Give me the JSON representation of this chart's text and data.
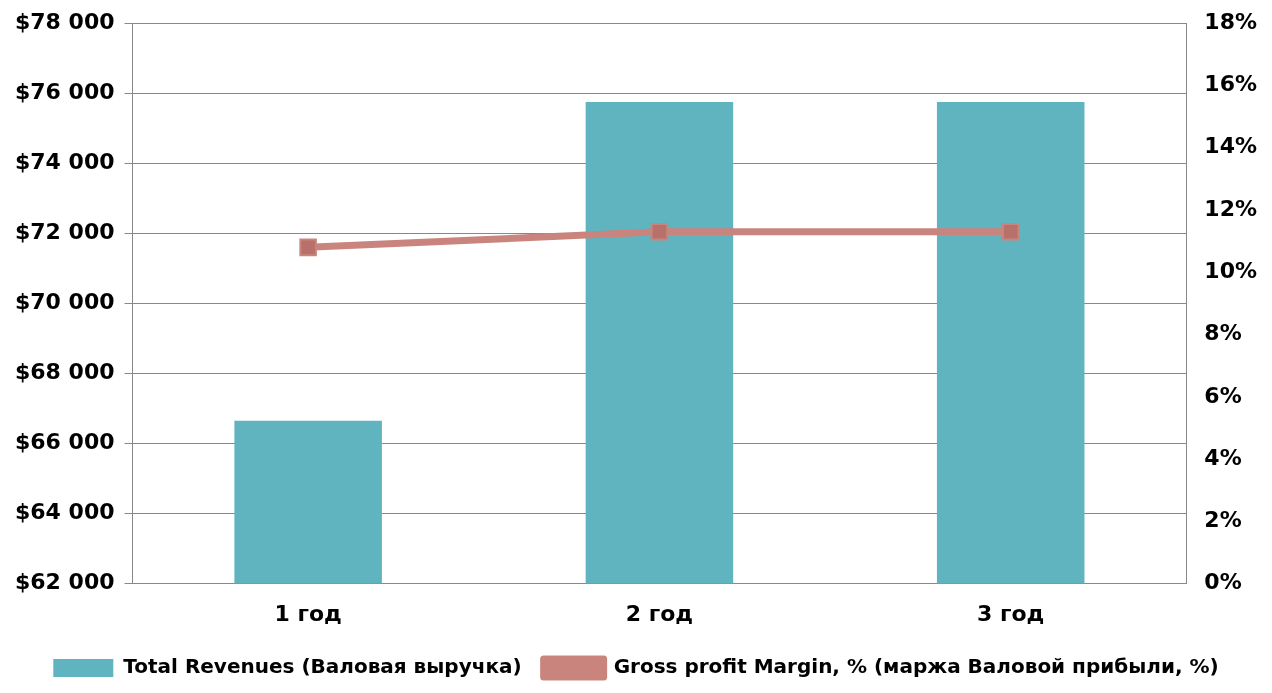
{
  "chart_data": {
    "type": "bar",
    "categories": [
      "1 год",
      "2 год",
      "3 год"
    ],
    "series": [
      {
        "name": "Total Revenues (Валовая выручка)",
        "color": "#5fb4c0",
        "values": [
          66650,
          75750,
          75750
        ]
      },
      {
        "name": "Gross profit Margin, % (маржа Валовой прибыли, %)",
        "type": "line",
        "axis": "y2",
        "color": "#c9857d",
        "values": [
          10.8,
          11.3,
          11.3
        ]
      }
    ],
    "ylim": [
      62000,
      78000
    ],
    "yticks": [
      {
        "value": 62000,
        "label": "$62 000"
      },
      {
        "value": 64000,
        "label": "$64 000"
      },
      {
        "value": 66000,
        "label": "$66 000"
      },
      {
        "value": 68000,
        "label": "$68 000"
      },
      {
        "value": 70000,
        "label": "$70 000"
      },
      {
        "value": 72000,
        "label": "$72 000"
      },
      {
        "value": 74000,
        "label": "$74 000"
      },
      {
        "value": 76000,
        "label": "$76 000"
      },
      {
        "value": 78000,
        "label": "$78 000"
      }
    ],
    "y2lim": [
      0,
      18
    ],
    "y2ticks": [
      {
        "value": 0,
        "label": "0%"
      },
      {
        "value": 2,
        "label": "2%"
      },
      {
        "value": 4,
        "label": "4%"
      },
      {
        "value": 6,
        "label": "6%"
      },
      {
        "value": 8,
        "label": "8%"
      },
      {
        "value": 10,
        "label": "10%"
      },
      {
        "value": 12,
        "label": "12%"
      },
      {
        "value": 14,
        "label": "14%"
      },
      {
        "value": 16,
        "label": "16%"
      },
      {
        "value": 18,
        "label": "18%"
      }
    ],
    "grid": "y",
    "legend": "bottom",
    "marker": "square",
    "line_style": "solid"
  }
}
